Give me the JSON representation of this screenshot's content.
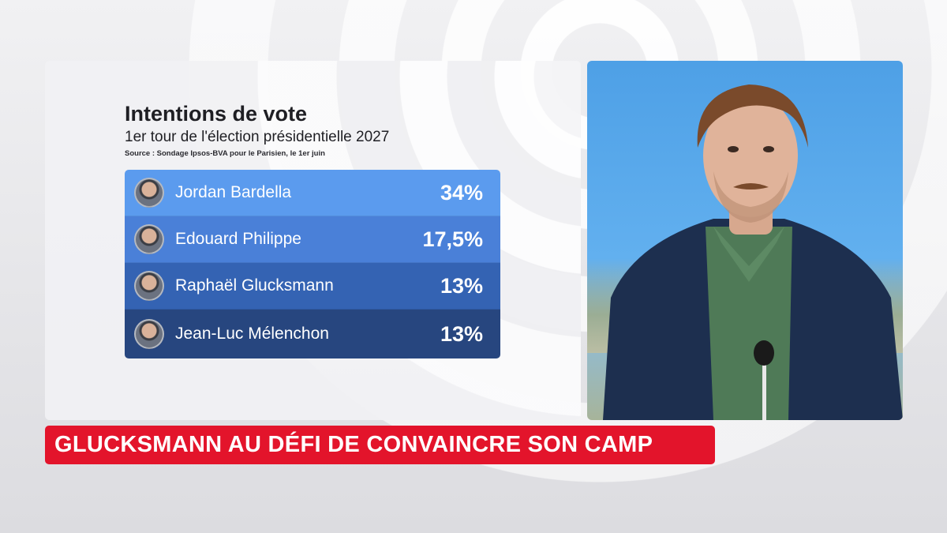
{
  "poll": {
    "title": "Intentions de vote",
    "subtitle": "1er tour de l'élection présidentielle 2027",
    "source": "Source : Sondage Ipsos-BVA pour le Parisien, le 1er juin",
    "rows": [
      {
        "name": "Jordan Bardella",
        "value": "34%",
        "color": "#5b9bee"
      },
      {
        "name": "Edouard Philippe",
        "value": "17,5%",
        "color": "#4a80d8"
      },
      {
        "name": "Raphaël Glucksmann",
        "value": "13%",
        "color": "#3463b3"
      },
      {
        "name": "Jean-Luc Mélenchon",
        "value": "13%",
        "color": "#27467f"
      }
    ]
  },
  "headline": {
    "text": "GLUCKSMANN AU DÉFI DE CONVAINCRE SON CAMP",
    "color": "#e3142b"
  },
  "icons": {
    "avatar": "candidate-portrait-icon"
  }
}
